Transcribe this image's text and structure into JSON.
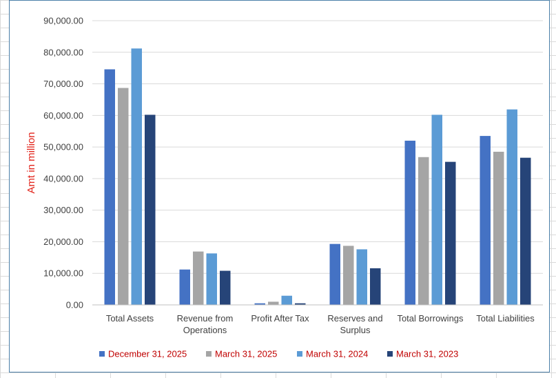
{
  "chart_data": {
    "type": "bar",
    "title": "",
    "xlabel": "",
    "ylabel": "Amt in million",
    "ylim": [
      0,
      90000
    ],
    "yticks": [
      "0.00",
      "10,000.00",
      "20,000.00",
      "30,000.00",
      "40,000.00",
      "50,000.00",
      "60,000.00",
      "70,000.00",
      "80,000.00",
      "90,000.00"
    ],
    "grid": true,
    "legend_position": "bottom",
    "categories": [
      [
        "Total Assets"
      ],
      [
        "Revenue from",
        "Operations"
      ],
      [
        "Profit After Tax"
      ],
      [
        "Reserves and",
        "Surplus"
      ],
      [
        "Total Borrowings"
      ],
      [
        "Total Liabilities"
      ]
    ],
    "series": [
      {
        "name": "December 31, 2025",
        "color": "#4472c4",
        "values": [
          74600,
          11200,
          500,
          19300,
          52000,
          53500
        ]
      },
      {
        "name": "March 31, 2025",
        "color": "#a5a5a5",
        "values": [
          68700,
          16900,
          1000,
          18700,
          46800,
          48500
        ]
      },
      {
        "name": "March 31, 2024",
        "color": "#5b9bd5",
        "values": [
          81200,
          16300,
          2900,
          17600,
          60200,
          61900
        ]
      },
      {
        "name": "March 31, 2023",
        "color": "#264478",
        "values": [
          60200,
          10800,
          500,
          11600,
          45300,
          46600
        ]
      }
    ]
  }
}
